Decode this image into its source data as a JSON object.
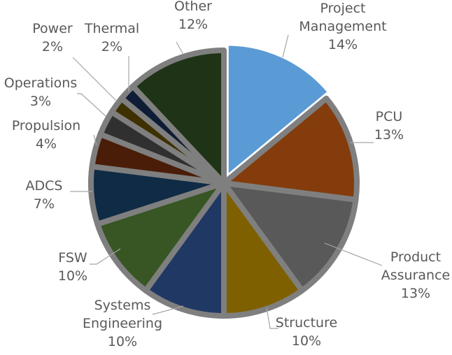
{
  "chart_data": {
    "type": "pie",
    "title": "",
    "slices": [
      {
        "lines": [
          "Project",
          "Management"
        ],
        "value": 14,
        "percent_label": "14%",
        "color": "#5b9bd5",
        "exploded": true
      },
      {
        "lines": [
          "PCU"
        ],
        "value": 13,
        "percent_label": "13%",
        "color": "#843c0c",
        "exploded": false
      },
      {
        "lines": [
          "Product",
          "Assurance"
        ],
        "value": 13,
        "percent_label": "13%",
        "color": "#595959",
        "exploded": false
      },
      {
        "lines": [
          "Structure"
        ],
        "value": 10,
        "percent_label": "10%",
        "color": "#7f6000",
        "exploded": false
      },
      {
        "lines": [
          "Systems",
          "Engineering"
        ],
        "value": 10,
        "percent_label": "10%",
        "color": "#203864",
        "exploded": false
      },
      {
        "lines": [
          "FSW"
        ],
        "value": 10,
        "percent_label": "10%",
        "color": "#375623",
        "exploded": false
      },
      {
        "lines": [
          "ADCS"
        ],
        "value": 7,
        "percent_label": "7%",
        "color": "#0f2b45",
        "exploded": false
      },
      {
        "lines": [
          "Propulsion"
        ],
        "value": 4,
        "percent_label": "4%",
        "color": "#4a1d08",
        "exploded": false
      },
      {
        "lines": [
          "Operations"
        ],
        "value": 3,
        "percent_label": "3%",
        "color": "#303030",
        "exploded": false
      },
      {
        "lines": [
          "Power"
        ],
        "value": 2,
        "percent_label": "2%",
        "color": "#3f3000",
        "exploded": false
      },
      {
        "lines": [
          "Thermal"
        ],
        "value": 2,
        "percent_label": "2%",
        "color": "#0f1c35",
        "exploded": false
      },
      {
        "lines": [
          "Other"
        ],
        "value": 12,
        "percent_label": "12%",
        "color": "#1f3316",
        "exploded": false
      }
    ],
    "separator_color": "#7f7f7f",
    "label_color": "#595959",
    "leader_line_color": "#a6a6a6"
  }
}
